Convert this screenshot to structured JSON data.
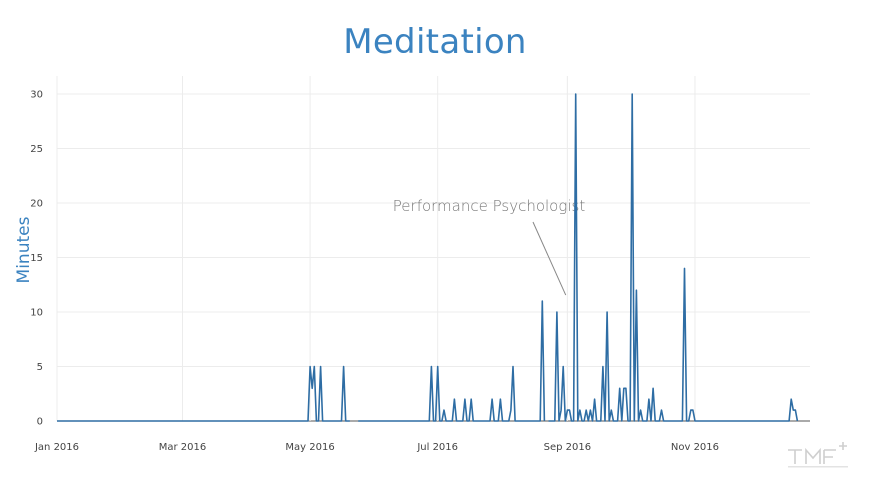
{
  "chart_data": {
    "type": "line",
    "title": "Meditation",
    "ylabel": "Minutes",
    "xlabel": "",
    "ylim": [
      0,
      30
    ],
    "xlim": [
      "2016-01-01",
      "2016-12-26"
    ],
    "grid": true,
    "line_color": "#2e6da4",
    "y_ticks": [
      0,
      5,
      10,
      15,
      20,
      25,
      30
    ],
    "x_ticks": [
      {
        "date": "2016-01-01",
        "label": "Jan 2016"
      },
      {
        "date": "2016-03-01",
        "label": "Mar 2016"
      },
      {
        "date": "2016-05-01",
        "label": "May 2016"
      },
      {
        "date": "2016-07-01",
        "label": "Jul 2016"
      },
      {
        "date": "2016-09-01",
        "label": "Sep 2016"
      },
      {
        "date": "2016-11-01",
        "label": "Nov 2016"
      }
    ],
    "annotation": {
      "text": "Performance Psychologist",
      "date": "2016-09-05",
      "y": 11
    },
    "segments": [
      [
        [
          "2016-01-01",
          0
        ],
        [
          "2016-04-30",
          0
        ],
        [
          "2016-05-01",
          5
        ],
        [
          "2016-05-02",
          3
        ],
        [
          "2016-05-03",
          5
        ],
        [
          "2016-05-04",
          0
        ],
        [
          "2016-05-05",
          0
        ],
        [
          "2016-05-06",
          5
        ],
        [
          "2016-05-07",
          0
        ],
        [
          "2016-05-16",
          0
        ],
        [
          "2016-05-17",
          5
        ],
        [
          "2016-05-18",
          0
        ],
        [
          "2016-05-20",
          0
        ]
      ],
      [
        [
          "2016-05-24",
          0
        ],
        [
          "2016-06-27",
          0
        ],
        [
          "2016-06-28",
          5
        ],
        [
          "2016-06-29",
          0
        ],
        [
          "2016-06-30",
          0
        ],
        [
          "2016-07-01",
          5
        ],
        [
          "2016-07-02",
          0
        ],
        [
          "2016-07-03",
          0
        ],
        [
          "2016-07-04",
          1
        ],
        [
          "2016-07-05",
          0
        ],
        [
          "2016-07-08",
          0
        ],
        [
          "2016-07-09",
          2
        ],
        [
          "2016-07-10",
          0
        ],
        [
          "2016-07-13",
          0
        ],
        [
          "2016-07-14",
          2
        ],
        [
          "2016-07-15",
          0
        ],
        [
          "2016-07-16",
          0
        ],
        [
          "2016-07-17",
          2
        ],
        [
          "2016-07-18",
          0
        ],
        [
          "2016-07-26",
          0
        ],
        [
          "2016-07-27",
          2
        ],
        [
          "2016-07-28",
          0
        ],
        [
          "2016-07-30",
          0
        ],
        [
          "2016-07-31",
          2
        ],
        [
          "2016-08-01",
          0
        ],
        [
          "2016-08-04",
          0
        ],
        [
          "2016-08-05",
          1
        ],
        [
          "2016-08-06",
          5
        ],
        [
          "2016-08-07",
          0
        ],
        [
          "2016-08-19",
          0
        ],
        [
          "2016-08-20",
          11
        ],
        [
          "2016-08-21",
          0
        ]
      ],
      [
        [
          "2016-08-23",
          0
        ],
        [
          "2016-08-26",
          0
        ],
        [
          "2016-08-27",
          10
        ],
        [
          "2016-08-28",
          0
        ],
        [
          "2016-08-29",
          1
        ],
        [
          "2016-08-30",
          5
        ],
        [
          "2016-08-31",
          0
        ],
        [
          "2016-09-01",
          1
        ],
        [
          "2016-09-02",
          1
        ],
        [
          "2016-09-03",
          0
        ],
        [
          "2016-09-04",
          0
        ],
        [
          "2016-09-05",
          30
        ],
        [
          "2016-09-06",
          0
        ],
        [
          "2016-09-07",
          1
        ],
        [
          "2016-09-08",
          0
        ],
        [
          "2016-09-09",
          0
        ],
        [
          "2016-09-10",
          1
        ],
        [
          "2016-09-11",
          0
        ],
        [
          "2016-09-12",
          1
        ],
        [
          "2016-09-13",
          0
        ],
        [
          "2016-09-14",
          2
        ],
        [
          "2016-09-15",
          0
        ],
        [
          "2016-09-17",
          0
        ],
        [
          "2016-09-18",
          5
        ],
        [
          "2016-09-19",
          0
        ],
        [
          "2016-09-20",
          10
        ],
        [
          "2016-09-21",
          0
        ],
        [
          "2016-09-22",
          1
        ],
        [
          "2016-09-23",
          0
        ],
        [
          "2016-09-25",
          0
        ],
        [
          "2016-09-26",
          3
        ],
        [
          "2016-09-27",
          0
        ],
        [
          "2016-09-28",
          3
        ],
        [
          "2016-09-29",
          3
        ],
        [
          "2016-09-30",
          0
        ],
        [
          "2016-10-01",
          0
        ],
        [
          "2016-10-02",
          30
        ],
        [
          "2016-10-03",
          0
        ],
        [
          "2016-10-04",
          12
        ],
        [
          "2016-10-05",
          0
        ],
        [
          "2016-10-06",
          1
        ],
        [
          "2016-10-07",
          0
        ],
        [
          "2016-10-09",
          0
        ],
        [
          "2016-10-10",
          2
        ],
        [
          "2016-10-11",
          0
        ],
        [
          "2016-10-12",
          3
        ],
        [
          "2016-10-13",
          0
        ],
        [
          "2016-10-15",
          0
        ],
        [
          "2016-10-16",
          1
        ],
        [
          "2016-10-17",
          0
        ],
        [
          "2016-10-26",
          0
        ],
        [
          "2016-10-27",
          14
        ],
        [
          "2016-10-28",
          0
        ],
        [
          "2016-10-29",
          0
        ],
        [
          "2016-10-30",
          1
        ],
        [
          "2016-10-31",
          1
        ],
        [
          "2016-11-01",
          0
        ],
        [
          "2016-12-16",
          0
        ],
        [
          "2016-12-17",
          2
        ],
        [
          "2016-12-18",
          1
        ],
        [
          "2016-12-19",
          1
        ],
        [
          "2016-12-20",
          0
        ]
      ]
    ]
  }
}
